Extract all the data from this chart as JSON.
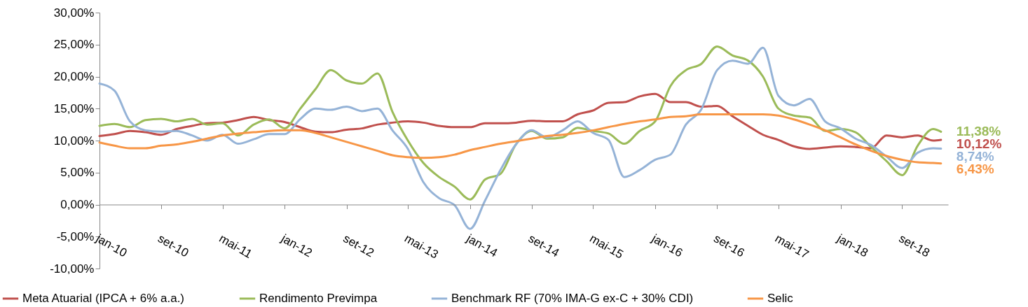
{
  "chart_data": {
    "type": "line",
    "x": [
      "2010-01",
      "2010-03",
      "2010-05",
      "2010-07",
      "2010-09",
      "2010-11",
      "2011-01",
      "2011-03",
      "2011-05",
      "2011-07",
      "2011-09",
      "2011-11",
      "2012-01",
      "2012-03",
      "2012-05",
      "2012-07",
      "2012-09",
      "2012-11",
      "2013-01",
      "2013-03",
      "2013-05",
      "2013-07",
      "2013-09",
      "2013-11",
      "2014-01",
      "2014-03",
      "2014-05",
      "2014-07",
      "2014-09",
      "2014-11",
      "2015-01",
      "2015-03",
      "2015-05",
      "2015-07",
      "2015-09",
      "2015-11",
      "2016-01",
      "2016-03",
      "2016-05",
      "2016-07",
      "2016-09",
      "2016-11",
      "2017-01",
      "2017-03",
      "2017-05",
      "2017-07",
      "2017-09",
      "2017-11",
      "2018-01",
      "2018-03",
      "2018-05",
      "2018-07",
      "2018-09",
      "2018-11",
      "2019-01",
      "2019-02"
    ],
    "series": [
      {
        "name": "Meta Atuarial (IPCA + 6% a.a.)",
        "color": "#c0504d",
        "values": [
          10.7,
          11.0,
          11.5,
          11.3,
          10.9,
          11.8,
          12.3,
          12.7,
          12.8,
          13.2,
          13.7,
          13.2,
          12.9,
          12.1,
          11.4,
          11.3,
          11.7,
          11.9,
          12.5,
          12.8,
          13.0,
          12.8,
          12.3,
          12.1,
          12.1,
          12.7,
          12.7,
          12.8,
          13.1,
          13.0,
          13.0,
          14.1,
          14.7,
          15.9,
          16.0,
          16.9,
          17.3,
          16.0,
          16.0,
          15.3,
          15.4,
          13.8,
          12.3,
          10.9,
          10.1,
          9.1,
          8.7,
          8.9,
          9.1,
          9.0,
          8.8,
          10.8,
          10.5,
          10.8,
          10.0,
          10.12
        ],
        "value_labels": [
          null,
          null,
          null,
          null,
          null,
          null,
          null,
          null,
          null,
          null,
          null,
          null,
          null,
          null,
          null,
          null,
          null,
          null,
          null,
          null,
          null,
          null,
          null,
          null,
          null,
          null,
          null,
          null,
          null,
          null,
          null,
          null,
          null,
          null,
          null,
          null,
          null,
          null,
          null,
          null,
          null,
          null,
          null,
          null,
          null,
          null,
          null,
          null,
          null,
          null,
          null,
          null,
          null,
          null,
          null,
          "10,12%"
        ]
      },
      {
        "name": "Rendimento Previmpa",
        "color": "#9bbb59",
        "values": [
          12.3,
          12.6,
          12.1,
          13.2,
          13.4,
          13.0,
          13.4,
          12.5,
          12.7,
          10.8,
          12.5,
          13.3,
          11.9,
          14.9,
          18.0,
          21.0,
          19.4,
          18.9,
          20.5,
          14.5,
          10.0,
          6.5,
          4.3,
          2.8,
          0.8,
          3.9,
          4.8,
          9.4,
          11.5,
          10.3,
          10.5,
          12.0,
          11.5,
          11.1,
          9.5,
          11.5,
          13.0,
          18.5,
          21.0,
          22.0,
          24.7,
          23.3,
          22.5,
          20.0,
          15.0,
          13.9,
          13.6,
          11.5,
          11.8,
          11.3,
          9.0,
          6.8,
          4.6,
          9.2,
          11.8,
          11.38
        ],
        "value_labels": [
          null,
          null,
          null,
          null,
          null,
          null,
          null,
          null,
          null,
          null,
          null,
          null,
          null,
          null,
          null,
          null,
          null,
          null,
          null,
          null,
          null,
          null,
          null,
          null,
          null,
          null,
          null,
          null,
          null,
          null,
          null,
          null,
          null,
          null,
          null,
          null,
          null,
          null,
          null,
          null,
          null,
          null,
          null,
          null,
          null,
          null,
          null,
          null,
          null,
          null,
          null,
          null,
          null,
          null,
          null,
          "11,38%"
        ]
      },
      {
        "name": "Benchmark RF (70% IMA-G ex-C + 30% CDI)",
        "color": "#95b3d7",
        "values": [
          18.9,
          17.8,
          13.0,
          11.6,
          11.4,
          11.5,
          10.8,
          10.0,
          10.9,
          9.5,
          10.2,
          11.0,
          11.0,
          13.3,
          15.0,
          14.8,
          15.3,
          14.6,
          15.0,
          11.6,
          8.7,
          3.5,
          1.0,
          -0.1,
          -3.8,
          0.6,
          5.4,
          9.4,
          11.6,
          10.5,
          11.6,
          13.0,
          11.2,
          10.1,
          4.3,
          5.4,
          7.0,
          7.8,
          12.5,
          14.9,
          21.0,
          22.5,
          22.0,
          24.5,
          17.0,
          15.5,
          16.5,
          13.0,
          11.9,
          10.3,
          9.3,
          7.5,
          5.7,
          8.1,
          8.8,
          8.74
        ],
        "value_labels": [
          null,
          null,
          null,
          null,
          null,
          null,
          null,
          null,
          null,
          null,
          null,
          null,
          null,
          null,
          null,
          null,
          null,
          null,
          null,
          null,
          null,
          null,
          null,
          null,
          null,
          null,
          null,
          null,
          null,
          null,
          null,
          null,
          null,
          null,
          null,
          null,
          null,
          null,
          null,
          null,
          null,
          null,
          null,
          null,
          null,
          null,
          null,
          null,
          null,
          null,
          null,
          null,
          null,
          null,
          null,
          "8,74%"
        ]
      },
      {
        "name": "Selic",
        "color": "#f79646",
        "values": [
          9.7,
          9.2,
          8.8,
          8.8,
          9.2,
          9.4,
          9.8,
          10.3,
          10.8,
          11.1,
          11.3,
          11.5,
          11.6,
          11.6,
          11.2,
          10.5,
          9.8,
          9.1,
          8.4,
          7.7,
          7.4,
          7.3,
          7.4,
          7.8,
          8.5,
          9.0,
          9.5,
          9.9,
          10.3,
          10.7,
          10.9,
          11.2,
          11.6,
          12.1,
          12.6,
          13.0,
          13.3,
          13.7,
          13.8,
          14.1,
          14.1,
          14.1,
          14.1,
          14.1,
          13.9,
          13.3,
          12.5,
          11.6,
          10.5,
          9.4,
          8.4,
          7.6,
          7.0,
          6.6,
          6.5,
          6.43
        ],
        "value_labels": [
          null,
          null,
          null,
          null,
          null,
          null,
          null,
          null,
          null,
          null,
          null,
          null,
          null,
          null,
          null,
          null,
          null,
          null,
          null,
          null,
          null,
          null,
          null,
          null,
          null,
          null,
          null,
          null,
          null,
          null,
          null,
          null,
          null,
          null,
          null,
          null,
          null,
          null,
          null,
          null,
          null,
          null,
          null,
          null,
          null,
          null,
          null,
          null,
          null,
          null,
          null,
          null,
          null,
          null,
          null,
          "6,43%"
        ]
      }
    ],
    "xlim": [
      "2010-01",
      "2019-03"
    ],
    "xticks": [
      {
        "value": "2010-01",
        "label": "jan-10"
      },
      {
        "value": "2010-09",
        "label": "set-10"
      },
      {
        "value": "2011-05",
        "label": "mai-11"
      },
      {
        "value": "2012-01",
        "label": "jan-12"
      },
      {
        "value": "2012-09",
        "label": "set-12"
      },
      {
        "value": "2013-05",
        "label": "mai-13"
      },
      {
        "value": "2014-01",
        "label": "jan-14"
      },
      {
        "value": "2014-09",
        "label": "set-14"
      },
      {
        "value": "2015-05",
        "label": "mai-15"
      },
      {
        "value": "2016-01",
        "label": "jan-16"
      },
      {
        "value": "2016-09",
        "label": "set-16"
      },
      {
        "value": "2017-05",
        "label": "mai-17"
      },
      {
        "value": "2018-01",
        "label": "jan-18"
      },
      {
        "value": "2018-09",
        "label": "set-18"
      }
    ],
    "ylim": [
      -10,
      30
    ],
    "yticks": [
      {
        "value": -10,
        "label": "-10,00%"
      },
      {
        "value": -5,
        "label": "-5,00%"
      },
      {
        "value": 0,
        "label": "0,00%"
      },
      {
        "value": 5,
        "label": "5,00%"
      },
      {
        "value": 10,
        "label": "10,00%"
      },
      {
        "value": 15,
        "label": "15,00%"
      },
      {
        "value": 20,
        "label": "20,00%"
      },
      {
        "value": 25,
        "label": "25,00%"
      },
      {
        "value": 30,
        "label": "30,00%"
      }
    ],
    "grid": false,
    "legend": "bottom"
  }
}
